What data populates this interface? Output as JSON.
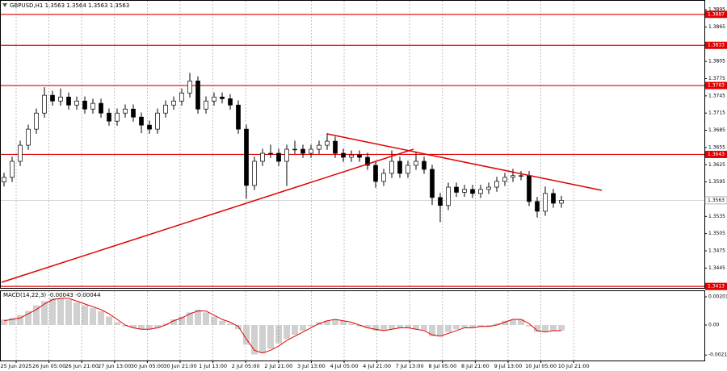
{
  "chart_data": [
    {
      "type": "candlestick",
      "title": "GBPUSD,H1 1.3563 1.3564 1.3563 1.3563",
      "color": "#000000",
      "grid": true,
      "xticks": [
        "25 Jun 2025",
        "26 Jun 05:00",
        "26 Jun 21:00",
        "27 Jun 13:00",
        "30 Jun 05:00",
        "30 Jun 21:00",
        "1 Jul 13:00",
        "2 Jul 05:00",
        "2 Jul 21:00",
        "3 Jul 13:00",
        "4 Jul 05:00",
        "4 Jul 21:00",
        "7 Jul 13:00",
        "8 Jul 05:00",
        "8 Jul 21:00",
        "9 Jul 13:00",
        "10 Jul 05:00",
        "10 Jul 21:00"
      ],
      "open": [
        1.3595,
        1.3603,
        1.3631,
        1.3659,
        1.3687,
        1.3715,
        1.3746,
        1.3736,
        1.3743,
        1.3729,
        1.3736,
        1.3722,
        1.3732,
        1.3715,
        1.3701,
        1.3715,
        1.3722,
        1.3708,
        1.3694,
        1.3687,
        1.3715,
        1.3729,
        1.3736,
        1.375,
        1.3771,
        1.3722,
        1.3736,
        1.3743,
        1.374,
        1.3729,
        1.3687,
        1.3589,
        1.3631,
        1.3645,
        1.3645,
        1.3631,
        1.3652,
        1.3652,
        1.3645,
        1.3652,
        1.3659,
        1.3666,
        1.3645,
        1.3638,
        1.3642,
        1.3638,
        1.3624,
        1.3596,
        1.361,
        1.3631,
        1.361,
        1.3624,
        1.3631,
        1.3617,
        1.3568,
        1.3554,
        1.3586,
        1.3577,
        1.3582,
        1.3575,
        1.3582,
        1.3586,
        1.3596,
        1.3603,
        1.3606,
        1.3606,
        1.3561,
        1.3544,
        1.3575,
        1.3558
      ],
      "high": [
        1.3611,
        1.3639,
        1.3667,
        1.3695,
        1.3723,
        1.376,
        1.3754,
        1.3758,
        1.3751,
        1.3744,
        1.3744,
        1.374,
        1.374,
        1.3723,
        1.3723,
        1.373,
        1.373,
        1.3716,
        1.3702,
        1.3723,
        1.3737,
        1.3744,
        1.3758,
        1.3785,
        1.3779,
        1.3744,
        1.3751,
        1.3751,
        1.3748,
        1.3737,
        1.3695,
        1.3639,
        1.3653,
        1.366,
        1.3653,
        1.366,
        1.3667,
        1.366,
        1.366,
        1.3667,
        1.368,
        1.3674,
        1.3653,
        1.365,
        1.365,
        1.3646,
        1.3632,
        1.3618,
        1.365,
        1.3639,
        1.3632,
        1.3648,
        1.3639,
        1.3625,
        1.3576,
        1.3594,
        1.3594,
        1.359,
        1.359,
        1.359,
        1.3594,
        1.3604,
        1.3611,
        1.3618,
        1.3614,
        1.3614,
        1.3569,
        1.3587,
        1.3583,
        1.3571
      ],
      "low": [
        1.3587,
        1.3595,
        1.3623,
        1.3651,
        1.3679,
        1.3707,
        1.3728,
        1.3728,
        1.3721,
        1.3721,
        1.3714,
        1.3714,
        1.3707,
        1.3693,
        1.3693,
        1.3707,
        1.37,
        1.368,
        1.3679,
        1.3679,
        1.3707,
        1.3721,
        1.3728,
        1.3742,
        1.3714,
        1.3714,
        1.3728,
        1.3732,
        1.3721,
        1.3679,
        1.3566,
        1.3581,
        1.3623,
        1.3637,
        1.3623,
        1.3588,
        1.3644,
        1.3637,
        1.3637,
        1.3644,
        1.3651,
        1.3637,
        1.363,
        1.363,
        1.363,
        1.3616,
        1.3585,
        1.3588,
        1.3602,
        1.3602,
        1.3602,
        1.3616,
        1.3609,
        1.3555,
        1.3525,
        1.3546,
        1.3569,
        1.3569,
        1.3567,
        1.3567,
        1.3574,
        1.3578,
        1.3588,
        1.3595,
        1.3598,
        1.3553,
        1.3533,
        1.3536,
        1.355,
        1.355
      ],
      "close": [
        1.3603,
        1.3631,
        1.3659,
        1.3687,
        1.3715,
        1.3746,
        1.3736,
        1.3743,
        1.3729,
        1.3736,
        1.3722,
        1.3732,
        1.3715,
        1.3701,
        1.3715,
        1.3722,
        1.3708,
        1.3694,
        1.3687,
        1.3715,
        1.3729,
        1.3736,
        1.375,
        1.3771,
        1.3722,
        1.3736,
        1.3743,
        1.374,
        1.3729,
        1.3687,
        1.3589,
        1.3631,
        1.3645,
        1.3645,
        1.3631,
        1.3652,
        1.3652,
        1.3645,
        1.3652,
        1.3659,
        1.3666,
        1.3645,
        1.3638,
        1.3642,
        1.3638,
        1.3624,
        1.3596,
        1.361,
        1.3631,
        1.361,
        1.3624,
        1.3631,
        1.3617,
        1.3568,
        1.3554,
        1.3586,
        1.3577,
        1.3582,
        1.3575,
        1.3582,
        1.3586,
        1.3596,
        1.3603,
        1.3606,
        1.3606,
        1.3561,
        1.3544,
        1.3575,
        1.3558,
        1.3563
      ],
      "ylim": [
        1.3409,
        1.3912
      ],
      "yticks": [
        1.3895,
        1.3865,
        1.3805,
        1.3775,
        1.3745,
        1.3715,
        1.3685,
        1.3655,
        1.3625,
        1.3595,
        1.3535,
        1.3505,
        1.3475,
        1.3445
      ],
      "levels": [
        {
          "value": 1.3887,
          "color": "#e00000"
        },
        {
          "value": 1.3833,
          "color": "#e00000"
        },
        {
          "value": 1.3763,
          "color": "#e00000"
        },
        {
          "value": 1.3643,
          "color": "#e00000"
        },
        {
          "value": 1.3413,
          "color": "#e00000"
        }
      ],
      "last_price": 1.3563
    },
    {
      "type": "macd",
      "title": "MACD(14,22,3) -0.00043 -0.00044",
      "color": "#a0a0a0",
      "signal_color": "#e00000",
      "histogram": [
        0.0004,
        0.0005,
        0.0007,
        0.001,
        0.0014,
        0.0017,
        0.0019,
        0.0019,
        0.0018,
        0.0016,
        0.0014,
        0.0012,
        0.001,
        0.0006,
        0.0002,
        -0.0001,
        -0.0002,
        -0.0003,
        -0.0003,
        -0.0002,
        0.0001,
        0.0004,
        0.0006,
        0.0009,
        0.0011,
        0.0009,
        0.0006,
        0.0003,
        0.0001,
        -0.0003,
        -0.0014,
        -0.0021,
        -0.002,
        -0.0017,
        -0.0013,
        -0.001,
        -0.0007,
        -0.0004,
        -0.0001,
        0.0002,
        0.0003,
        0.0004,
        0.0003,
        0.0001,
        -0.0001,
        -0.0002,
        -0.0004,
        -0.0004,
        -0.0003,
        -0.0002,
        -0.0002,
        -0.0003,
        -0.0004,
        -0.0008,
        -0.0008,
        -0.0005,
        -0.0003,
        -0.0002,
        -0.0002,
        -0.0001,
        -0.0001,
        0.0001,
        0.0003,
        0.0004,
        0.0004,
        -0.0001,
        -0.0005,
        -0.0005,
        -0.0004,
        -0.0004
      ],
      "signal": [
        0.0003,
        0.0004,
        0.0005,
        0.0008,
        0.0011,
        0.0015,
        0.0018,
        0.0019,
        0.0019,
        0.0017,
        0.0015,
        0.0013,
        0.0011,
        0.0008,
        0.0004,
        0,
        -0.0002,
        -0.0003,
        -0.0003,
        -0.0002,
        0,
        0.0003,
        0.0005,
        0.0008,
        0.001,
        0.001,
        0.0007,
        0.0004,
        0.0002,
        -0.0001,
        -0.001,
        -0.0018,
        -0.002,
        -0.0018,
        -0.0015,
        -0.0011,
        -0.0008,
        -0.0005,
        -0.0002,
        0.0001,
        0.0003,
        0.0004,
        0.0003,
        0.0002,
        0,
        -0.0002,
        -0.0003,
        -0.0004,
        -0.0003,
        -0.0002,
        -0.0002,
        -0.0003,
        -0.0004,
        -0.0007,
        -0.0008,
        -0.0006,
        -0.0004,
        -0.0002,
        -0.0002,
        -0.0001,
        -0.0001,
        0,
        0.0002,
        0.0004,
        0.0004,
        0.0001,
        -0.0004,
        -0.0005,
        -0.0004,
        -0.0004
      ],
      "ylim": [
        -0.00253,
        0.00247
      ],
      "yticks": [
        0.00201,
        {
          "value": 0,
          "label": "0.00"
        },
        -0.00214
      ]
    }
  ]
}
